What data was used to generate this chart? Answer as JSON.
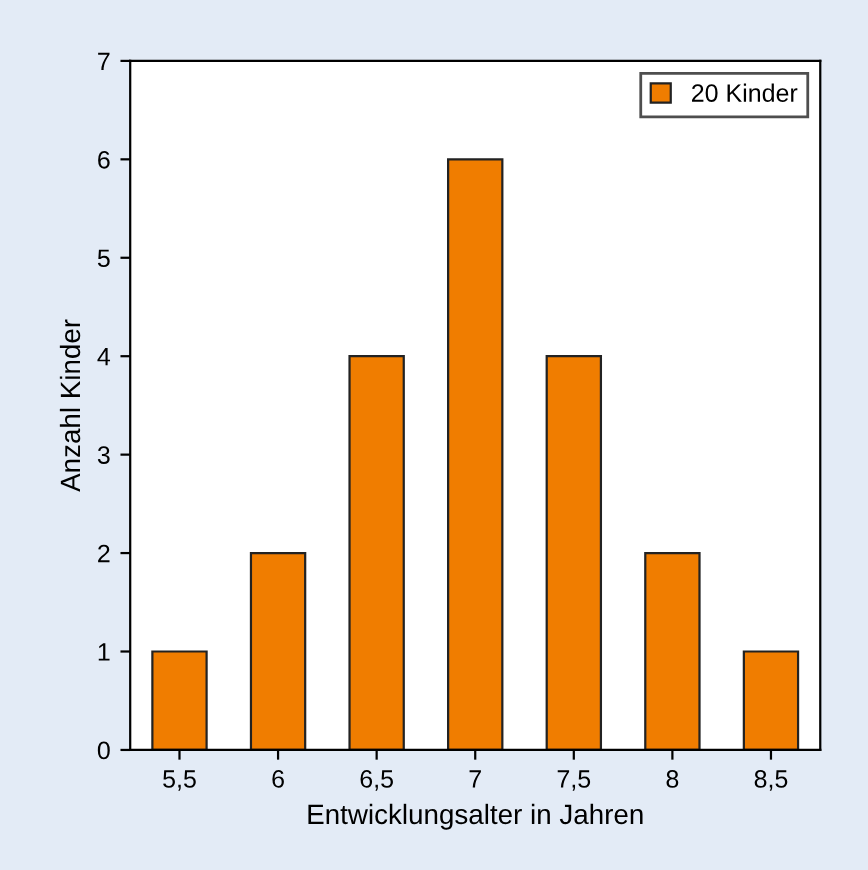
{
  "chart_data": {
    "type": "bar",
    "xlabel": "Entwicklungsalter in Jahren",
    "ylabel": "Anzahl Kinder",
    "categories": [
      "5,5",
      "6",
      "6,5",
      "7",
      "7,5",
      "8",
      "8,5"
    ],
    "series": [
      {
        "name": "20 Kinder",
        "color": "#f07d00",
        "values": [
          1,
          2,
          4,
          6,
          4,
          2,
          1
        ]
      }
    ],
    "ylim": [
      0,
      7
    ],
    "yticks": [
      0,
      1,
      2,
      3,
      4,
      5,
      6,
      7
    ],
    "grid": false,
    "legend": "top right"
  }
}
